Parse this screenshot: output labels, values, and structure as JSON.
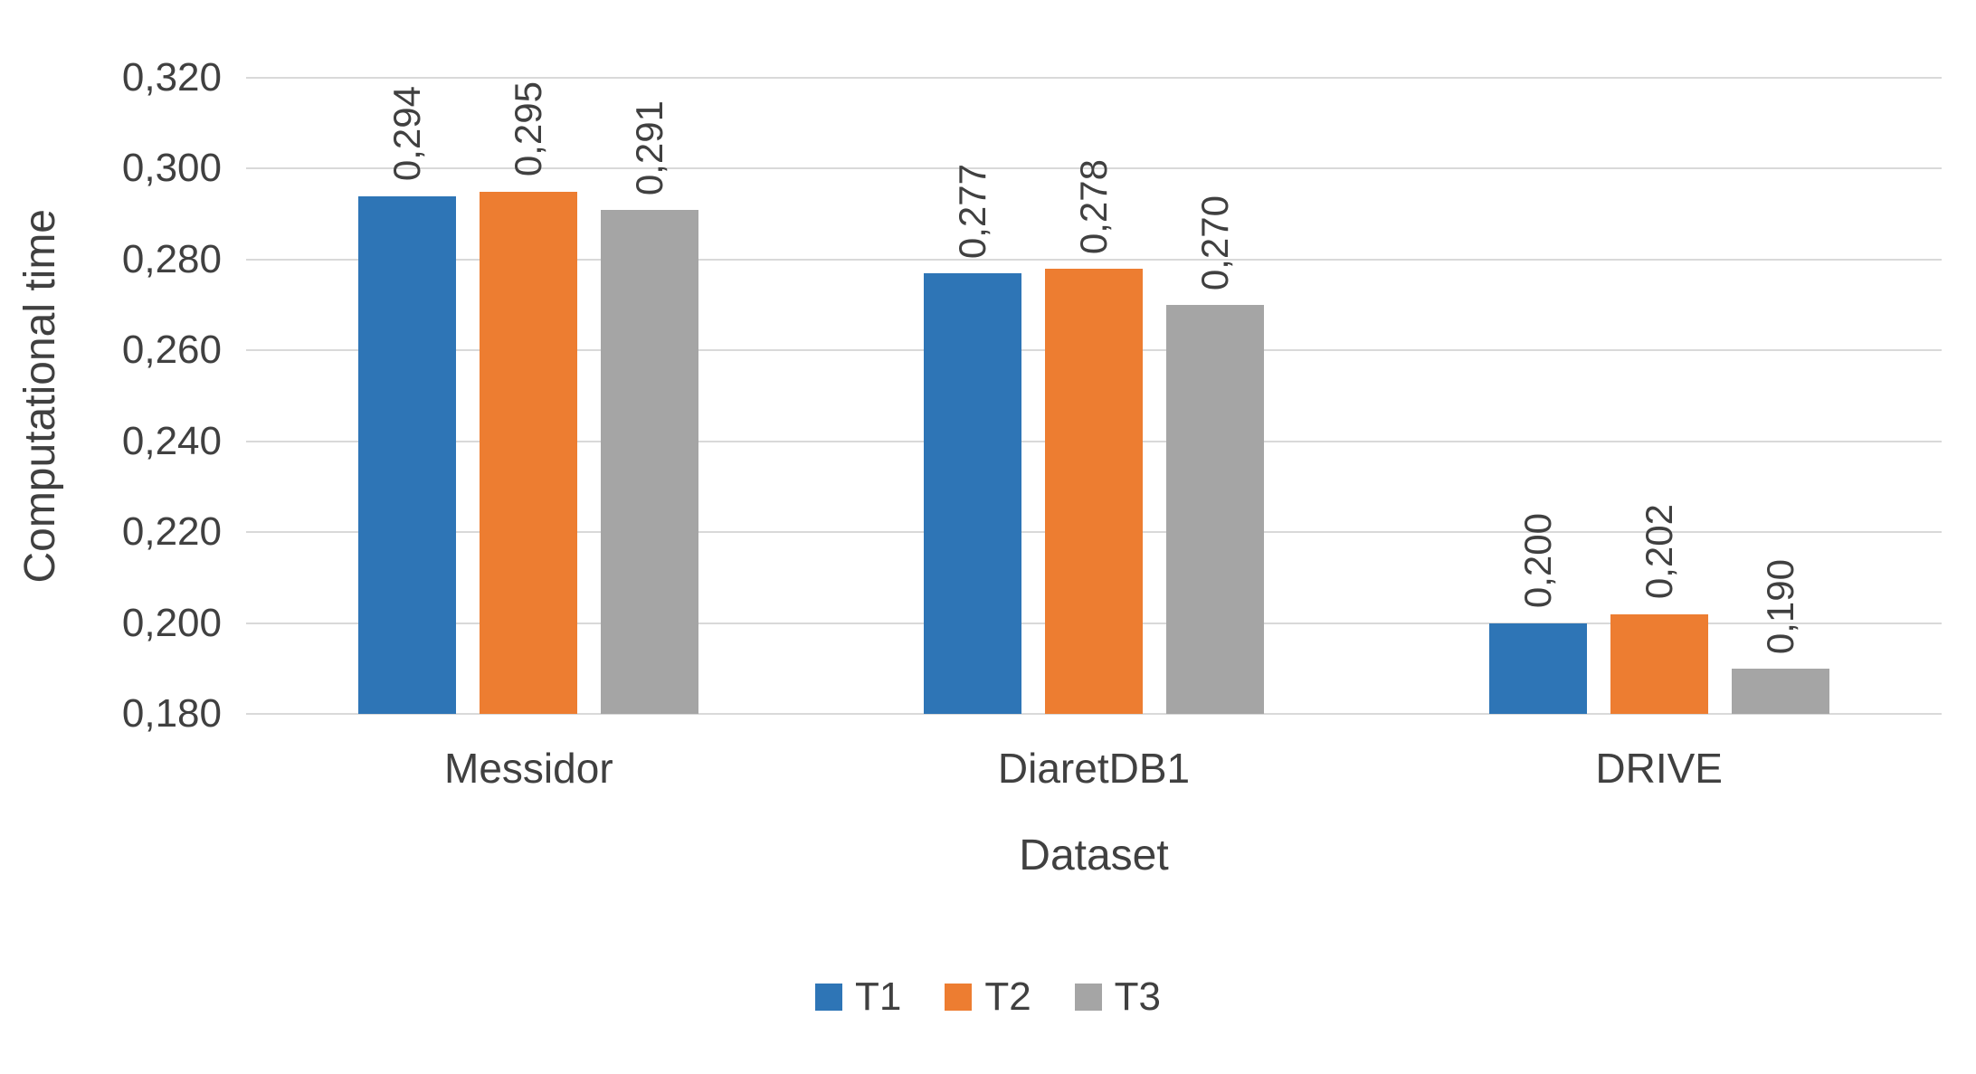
{
  "chart_data": {
    "type": "bar",
    "title": "",
    "xlabel": "Dataset",
    "ylabel": "Computational time",
    "categories": [
      "Messidor",
      "DiaretDB1",
      "DRIVE"
    ],
    "series": [
      {
        "name": "T1",
        "color": "#2e75b6",
        "values": [
          0.294,
          0.277,
          0.2
        ],
        "labels": [
          "0,294",
          "0,277",
          "0,200"
        ]
      },
      {
        "name": "T2",
        "color": "#ed7d31",
        "values": [
          0.295,
          0.278,
          0.202
        ],
        "labels": [
          "0,295",
          "0,278",
          "0,202"
        ]
      },
      {
        "name": "T3",
        "color": "#a5a5a5",
        "values": [
          0.291,
          0.27,
          0.19
        ],
        "labels": [
          "0,291",
          "0,270",
          "0,190"
        ]
      }
    ],
    "ylim": [
      0.18,
      0.32
    ],
    "ytick_step": 0.02,
    "ytick_labels_top_to_bottom": [
      "0,320",
      "0,300",
      "0,280",
      "0,260",
      "0,240",
      "0,220",
      "0,200",
      "0,180"
    ],
    "decimal_separator": ",",
    "grid": true,
    "legend_position": "bottom",
    "text_color": "#404040",
    "gridline_color": "#d9d9d9"
  }
}
